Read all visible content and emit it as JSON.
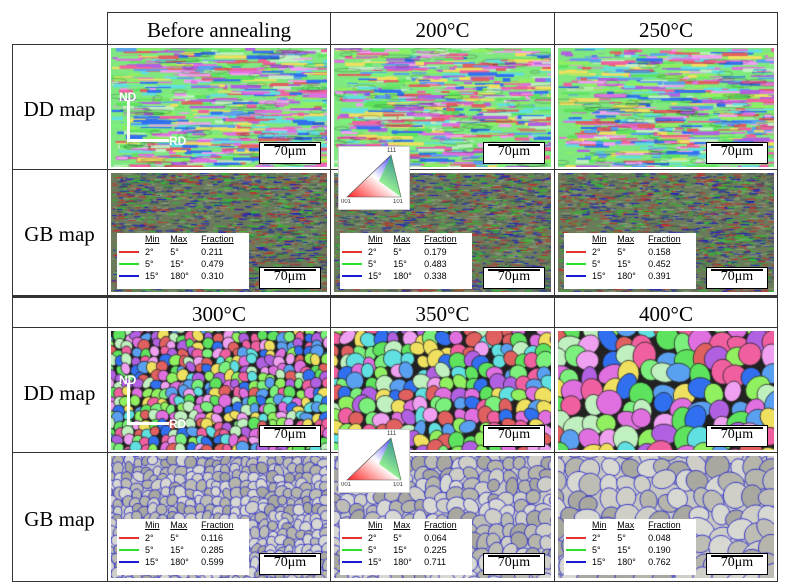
{
  "columns_top": [
    "Before annealing",
    "200°C",
    "250°C"
  ],
  "columns_bottom": [
    "300°C",
    "350°C",
    "400°C"
  ],
  "row_labels": {
    "dd": "DD map",
    "gb": "GB map"
  },
  "scale_bar": "70μm",
  "axes": {
    "nd": "ND",
    "rd": "RD"
  },
  "ipf_key": {
    "top": "111",
    "left": "001",
    "right": "101"
  },
  "legend_headers": {
    "min": "Min",
    "max": "Max",
    "fraction": "Fraction"
  },
  "legend_rows": [
    {
      "min": "2°",
      "max": "5°",
      "color": "#e53030"
    },
    {
      "min": "5°",
      "max": "15°",
      "color": "#2ee02e"
    },
    {
      "min": "15°",
      "max": "180°",
      "color": "#1a1ad0"
    }
  ],
  "gb_fractions": [
    [
      "0.211",
      "0.479",
      "0.310"
    ],
    [
      "0.179",
      "0.483",
      "0.338"
    ],
    [
      "0.158",
      "0.452",
      "0.391"
    ],
    [
      "0.116",
      "0.285",
      "0.599"
    ],
    [
      "0.064",
      "0.225",
      "0.711"
    ],
    [
      "0.048",
      "0.190",
      "0.762"
    ]
  ]
}
